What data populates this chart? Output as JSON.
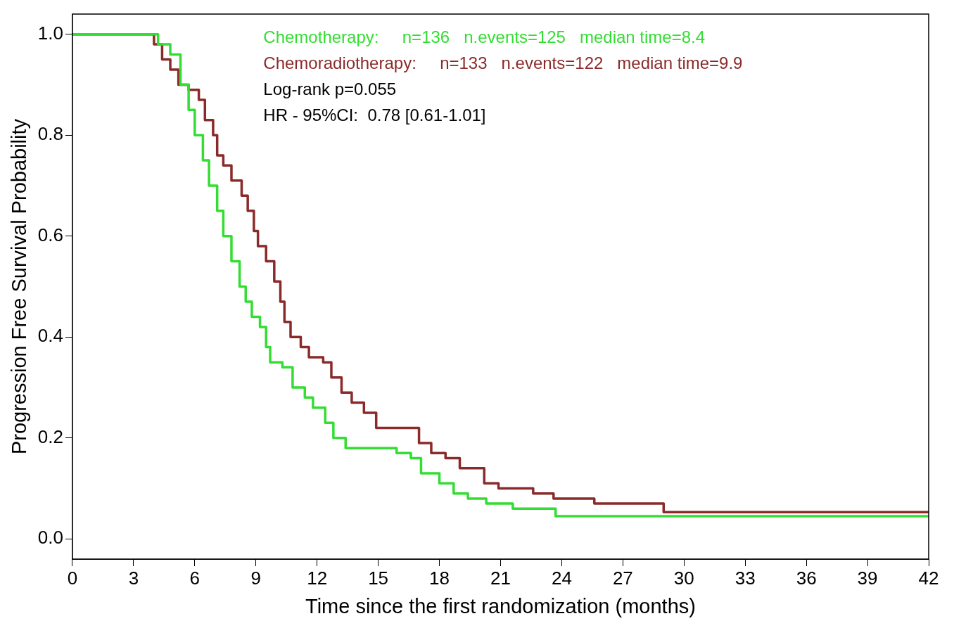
{
  "chart_data": {
    "type": "step",
    "xlabel": "Time since the first randomization (months)",
    "ylabel": "Progression Free Survival Probability",
    "xlim": [
      0,
      42
    ],
    "xticks": [
      0,
      3,
      6,
      9,
      12,
      15,
      18,
      21,
      24,
      27,
      30,
      33,
      36,
      39,
      42
    ],
    "ylim": [
      -0.04,
      1.04
    ],
    "yticks": [
      {
        "value": 0,
        "label": "0.0"
      },
      0.2,
      0.4,
      0.6,
      0.8,
      {
        "value": 1,
        "label": "1.0"
      }
    ],
    "grid": false,
    "legend": "top right",
    "marker": "none",
    "line_style": "solid",
    "series": [
      {
        "name": "Chemotherapy:     n=136   n.events=125   median time=8.4",
        "color": "#33dd33",
        "x": [
          0,
          4.2,
          4.8,
          5.3,
          5.7,
          6.0,
          6.4,
          6.7,
          7.1,
          7.4,
          7.8,
          8.2,
          8.5,
          8.8,
          9.2,
          9.5,
          9.7,
          10.3,
          10.8,
          11.4,
          11.8,
          12.4,
          12.8,
          13.4,
          15.9,
          16.6,
          17.1,
          18.0,
          18.7,
          19.4,
          20.3,
          21.6,
          23.7,
          42
        ],
        "values": [
          1.0,
          0.98,
          0.96,
          0.9,
          0.85,
          0.8,
          0.75,
          0.7,
          0.65,
          0.6,
          0.55,
          0.5,
          0.47,
          0.44,
          0.42,
          0.38,
          0.35,
          0.34,
          0.3,
          0.28,
          0.26,
          0.23,
          0.2,
          0.18,
          0.17,
          0.16,
          0.13,
          0.11,
          0.09,
          0.08,
          0.07,
          0.06,
          0.045,
          0.045
        ]
      },
      {
        "name": "Chemoradiotherapy:     n=133   n.events=122   median time=9.9",
        "color": "#8b2a2a",
        "x": [
          0,
          4.0,
          4.4,
          4.8,
          5.2,
          5.7,
          6.2,
          6.5,
          6.9,
          7.1,
          7.4,
          7.8,
          8.3,
          8.6,
          8.9,
          9.1,
          9.5,
          9.9,
          10.2,
          10.4,
          10.7,
          11.2,
          11.6,
          12.3,
          12.7,
          13.2,
          13.7,
          14.3,
          14.9,
          16.4,
          17.0,
          17.6,
          18.3,
          19.0,
          20.2,
          20.9,
          22.6,
          23.6,
          25.6,
          29.0,
          42
        ],
        "values": [
          1.0,
          0.98,
          0.95,
          0.93,
          0.9,
          0.89,
          0.87,
          0.83,
          0.8,
          0.76,
          0.74,
          0.71,
          0.68,
          0.65,
          0.61,
          0.58,
          0.55,
          0.51,
          0.47,
          0.43,
          0.4,
          0.38,
          0.36,
          0.35,
          0.32,
          0.29,
          0.27,
          0.25,
          0.22,
          0.22,
          0.19,
          0.17,
          0.16,
          0.14,
          0.11,
          0.1,
          0.09,
          0.08,
          0.07,
          0.053,
          0.053
        ]
      }
    ],
    "annotations": [
      "Log-rank p=0.055",
      "HR - 95%CI:  0.78 [0.61-1.01]"
    ]
  }
}
